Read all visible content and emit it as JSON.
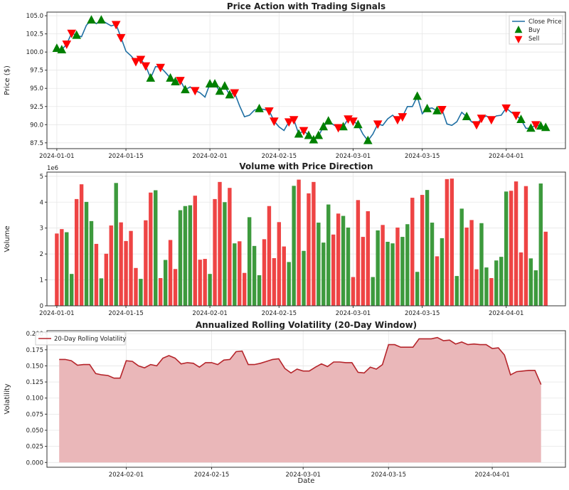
{
  "chart_data": [
    {
      "type": "line",
      "title": "Price Action with Trading Signals",
      "ylabel": "Price ($)",
      "xlabel": "",
      "ylim": [
        86.7,
        105.5
      ],
      "xlim": [
        "2023-12-30",
        "2024-04-13"
      ],
      "yticks": [
        87.5,
        90.0,
        92.5,
        95.0,
        97.5,
        100.0,
        102.5,
        105.0
      ],
      "xticks": [
        "2024-01-01",
        "2024-01-15",
        "2024-02-01",
        "2024-02-15",
        "2024-03-01",
        "2024-03-15",
        "2024-04-01"
      ],
      "grid": true,
      "legend_position": "top-right",
      "legend": [
        "Close Price",
        "Buy",
        "Sell"
      ],
      "colors": {
        "line": "#1f6fa3",
        "buy": "#008000",
        "sell": "#ff0000"
      },
      "dates": [
        "2024-01-01",
        "2024-01-02",
        "2024-01-03",
        "2024-01-04",
        "2024-01-05",
        "2024-01-06",
        "2024-01-07",
        "2024-01-08",
        "2024-01-09",
        "2024-01-10",
        "2024-01-11",
        "2024-01-12",
        "2024-01-13",
        "2024-01-14",
        "2024-01-15",
        "2024-01-16",
        "2024-01-17",
        "2024-01-18",
        "2024-01-19",
        "2024-01-20",
        "2024-01-21",
        "2024-01-22",
        "2024-01-23",
        "2024-01-24",
        "2024-01-25",
        "2024-01-26",
        "2024-01-27",
        "2024-01-28",
        "2024-01-29",
        "2024-01-30",
        "2024-01-31",
        "2024-02-01",
        "2024-02-02",
        "2024-02-03",
        "2024-02-04",
        "2024-02-05",
        "2024-02-06",
        "2024-02-07",
        "2024-02-08",
        "2024-02-09",
        "2024-02-10",
        "2024-02-11",
        "2024-02-12",
        "2024-02-13",
        "2024-02-14",
        "2024-02-15",
        "2024-02-16",
        "2024-02-17",
        "2024-02-18",
        "2024-02-19",
        "2024-02-20",
        "2024-02-21",
        "2024-02-22",
        "2024-02-23",
        "2024-02-24",
        "2024-02-25",
        "2024-02-26",
        "2024-02-27",
        "2024-02-28",
        "2024-02-29",
        "2024-03-01",
        "2024-03-02",
        "2024-03-03",
        "2024-03-04",
        "2024-03-05",
        "2024-03-06",
        "2024-03-07",
        "2024-03-08",
        "2024-03-09",
        "2024-03-10",
        "2024-03-11",
        "2024-03-12",
        "2024-03-13",
        "2024-03-14",
        "2024-03-15",
        "2024-03-16",
        "2024-03-17",
        "2024-03-18",
        "2024-03-19",
        "2024-03-20",
        "2024-03-21",
        "2024-03-22",
        "2024-03-23",
        "2024-03-24",
        "2024-03-25",
        "2024-03-26",
        "2024-03-27",
        "2024-03-28",
        "2024-03-29",
        "2024-03-30",
        "2024-03-31",
        "2024-04-01",
        "2024-04-02",
        "2024-04-03",
        "2024-04-04",
        "2024-04-05",
        "2024-04-06",
        "2024-04-07",
        "2024-04-08",
        "2024-04-09"
      ],
      "close": [
        100.5,
        100.3,
        101.1,
        102.6,
        102.3,
        102.1,
        103.7,
        104.4,
        103.9,
        104.4,
        104.0,
        103.6,
        103.8,
        102.0,
        100.1,
        99.5,
        98.7,
        99.0,
        98.1,
        96.4,
        98.0,
        97.9,
        97.2,
        96.4,
        95.9,
        96.1,
        94.8,
        95.2,
        94.7,
        94.4,
        93.8,
        95.6,
        95.6,
        94.6,
        95.3,
        94.1,
        94.4,
        92.6,
        91.1,
        91.3,
        92.0,
        92.2,
        92.1,
        91.9,
        90.5,
        89.7,
        89.2,
        90.4,
        90.7,
        88.7,
        89.2,
        88.5,
        87.9,
        88.5,
        89.7,
        90.5,
        90.0,
        89.6,
        89.7,
        90.8,
        90.5,
        90.0,
        88.7,
        87.8,
        88.7,
        90.1,
        89.9,
        90.8,
        91.3,
        90.7,
        91.1,
        92.5,
        92.5,
        93.9,
        91.5,
        92.2,
        92.3,
        91.9,
        92.1,
        90.1,
        89.9,
        90.4,
        91.7,
        91.1,
        90.4,
        90.0,
        90.9,
        91.2,
        90.7,
        91.2,
        91.3,
        92.3,
        91.7,
        91.3,
        90.7,
        89.5,
        89.5,
        90.0,
        89.8,
        89.6
      ],
      "buy_signals": [
        "2024-01-01",
        "2024-01-02",
        "2024-01-05",
        "2024-01-08",
        "2024-01-10",
        "2024-01-20",
        "2024-01-24",
        "2024-01-25",
        "2024-01-27",
        "2024-02-01",
        "2024-02-02",
        "2024-02-03",
        "2024-02-04",
        "2024-02-05",
        "2024-02-11",
        "2024-02-19",
        "2024-02-21",
        "2024-02-22",
        "2024-02-23",
        "2024-02-24",
        "2024-02-25",
        "2024-02-28",
        "2024-03-02",
        "2024-03-04",
        "2024-03-14",
        "2024-03-16",
        "2024-03-18",
        "2024-03-24",
        "2024-04-04",
        "2024-04-06",
        "2024-04-08",
        "2024-04-09"
      ],
      "sell_signals": [
        "2024-01-03",
        "2024-01-04",
        "2024-01-13",
        "2024-01-14",
        "2024-01-17",
        "2024-01-18",
        "2024-01-19",
        "2024-01-22",
        "2024-01-26",
        "2024-01-29",
        "2024-02-06",
        "2024-02-13",
        "2024-02-14",
        "2024-02-17",
        "2024-02-18",
        "2024-02-20",
        "2024-02-27",
        "2024-02-29",
        "2024-03-01",
        "2024-03-06",
        "2024-03-10",
        "2024-03-11",
        "2024-03-19",
        "2024-03-26",
        "2024-03-27",
        "2024-03-29",
        "2024-04-01",
        "2024-04-03",
        "2024-04-07"
      ]
    },
    {
      "type": "bar",
      "title": "Volume with Price Direction",
      "ylabel": "Volume",
      "xlabel": "",
      "offset_label": "1e6",
      "ylim": [
        0,
        5160000
      ],
      "xlim": [
        "2023-12-30",
        "2024-04-13"
      ],
      "yticks": [
        0,
        1,
        2,
        3,
        4,
        5
      ],
      "xticks": [
        "2024-01-01",
        "2024-01-15",
        "2024-02-01",
        "2024-02-15",
        "2024-03-01",
        "2024-03-15",
        "2024-04-01"
      ],
      "grid": true,
      "colors": {
        "up": "#3d9a3d",
        "down": "#ee4444"
      },
      "volume": [
        2790000,
        2960000,
        2840000,
        1230000,
        4120000,
        4690000,
        4010000,
        3270000,
        2390000,
        1060000,
        2010000,
        3100000,
        4740000,
        3220000,
        2500000,
        2890000,
        1460000,
        1040000,
        3300000,
        4370000,
        4460000,
        1070000,
        1770000,
        2540000,
        1420000,
        3690000,
        3850000,
        3880000,
        4250000,
        1780000,
        1810000,
        1230000,
        4120000,
        4780000,
        4000000,
        4550000,
        2410000,
        2490000,
        1270000,
        3420000,
        2310000,
        1180000,
        2570000,
        3850000,
        1840000,
        3230000,
        2290000,
        1690000,
        4630000,
        4870000,
        2120000,
        4340000,
        4780000,
        3210000,
        2440000,
        3910000,
        2750000,
        3560000,
        3470000,
        3020000,
        1110000,
        4080000,
        2660000,
        3650000,
        1110000,
        2910000,
        3120000,
        2470000,
        2410000,
        3020000,
        2660000,
        3150000,
        4170000,
        1310000,
        4280000,
        4470000,
        3210000,
        1910000,
        2610000,
        4890000,
        4910000,
        1150000,
        3750000,
        3020000,
        3310000,
        1410000,
        3190000,
        1480000,
        1070000,
        1750000,
        1890000,
        4410000,
        4440000,
        4800000,
        2060000,
        4620000,
        1830000,
        1370000,
        4720000,
        2860000
      ],
      "direction": "RRGGRRGGRGRRGRRRRGRRGRGRRGGGRRRGRRGRGRRGGGRRRRRGGRGRRGGGRRGGRRRRGGRGGRGGRGRGGRGRRGGRRRGGRGGGRRRRGGGR"
    },
    {
      "type": "area",
      "title": "Annualized Rolling Volatility (20-Day Window)",
      "ylabel": "Volatility",
      "xlabel": "Date",
      "ylim": [
        -0.0074,
        0.2046
      ],
      "xlim": [
        "2024-01-19",
        "2024-04-13"
      ],
      "yticks": [
        0.0,
        0.025,
        0.05,
        0.075,
        0.1,
        0.125,
        0.15,
        0.175,
        0.2
      ],
      "xticks": [
        "2024-02-01",
        "2024-02-15",
        "2024-03-01",
        "2024-03-15",
        "2024-04-01"
      ],
      "grid": true,
      "legend_position": "top-left",
      "legend": [
        "20-Day Rolling Volatility"
      ],
      "colors": {
        "line": "#b5252b",
        "fill": "#eab7b9"
      },
      "volatility": [
        null,
        null,
        null,
        null,
        null,
        null,
        null,
        null,
        null,
        null,
        null,
        null,
        null,
        null,
        null,
        null,
        null,
        null,
        null,
        null,
        0.16,
        0.16,
        0.158,
        0.151,
        0.152,
        0.152,
        0.138,
        0.136,
        0.135,
        0.131,
        0.131,
        0.158,
        0.157,
        0.15,
        0.147,
        0.152,
        0.15,
        0.162,
        0.166,
        0.162,
        0.153,
        0.155,
        0.154,
        0.148,
        0.155,
        0.155,
        0.152,
        0.159,
        0.16,
        0.172,
        0.173,
        0.152,
        0.152,
        0.154,
        0.157,
        0.16,
        0.161,
        0.146,
        0.139,
        0.145,
        0.142,
        0.142,
        0.148,
        0.153,
        0.149,
        0.156,
        0.156,
        0.155,
        0.155,
        0.14,
        0.139,
        0.148,
        0.145,
        0.152,
        0.183,
        0.183,
        0.179,
        0.179,
        0.179,
        0.192,
        0.192,
        0.192,
        0.194,
        0.189,
        0.19,
        0.184,
        0.187,
        0.183,
        0.184,
        0.183,
        0.183,
        0.177,
        0.178,
        0.167,
        0.136,
        0.141,
        0.142,
        0.143,
        0.143,
        0.121
      ]
    }
  ]
}
